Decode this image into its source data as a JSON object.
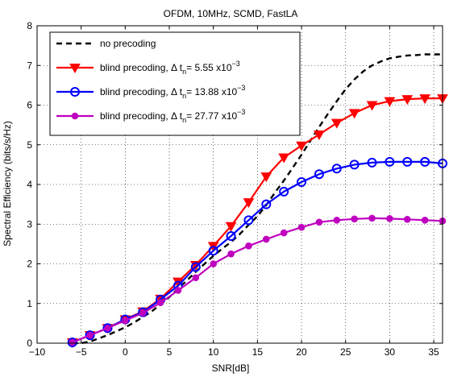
{
  "chart_data": {
    "type": "line",
    "title": "OFDM, 10MHz, SCMD, FastLA",
    "xlabel": "SNR[dB]",
    "ylabel": "Spectral Efficiency (bits/s/Hz)",
    "xlim": [
      -10,
      36
    ],
    "ylim": [
      0,
      8
    ],
    "xticks": [
      -10,
      -5,
      0,
      5,
      10,
      15,
      20,
      25,
      30,
      35
    ],
    "yticks": [
      0,
      1,
      2,
      3,
      4,
      5,
      6,
      7,
      8
    ],
    "grid": true,
    "legend_position": "top-left",
    "series": [
      {
        "name": "no precoding",
        "legend_prefix": "no precoding",
        "legend_sup": "",
        "color": "#000000",
        "style": "dashed",
        "marker": "none",
        "x": [
          -6,
          -5,
          -4,
          -3,
          -2,
          -1,
          0,
          1,
          2,
          3,
          4,
          5,
          6,
          7,
          8,
          9,
          10,
          11,
          12,
          13,
          14,
          15,
          16,
          17,
          18,
          19,
          20,
          21,
          22,
          23,
          24,
          25,
          26,
          27,
          28,
          29,
          30,
          31,
          32,
          33,
          34,
          35,
          36
        ],
        "y": [
          0.0,
          0.0,
          0.04,
          0.12,
          0.2,
          0.3,
          0.4,
          0.52,
          0.66,
          0.8,
          0.98,
          1.16,
          1.38,
          1.58,
          1.8,
          2.0,
          2.2,
          2.38,
          2.55,
          2.75,
          2.98,
          3.2,
          3.48,
          3.8,
          4.1,
          4.42,
          4.75,
          5.1,
          5.45,
          5.78,
          6.1,
          6.4,
          6.65,
          6.85,
          7.0,
          7.1,
          7.18,
          7.22,
          7.25,
          7.26,
          7.28,
          7.28,
          7.28
        ]
      },
      {
        "name": "blind precoding, Δ t_n= 5.55 x10^-3",
        "legend_prefix": "blind precoding, Δ t",
        "legend_sub": "n",
        "legend_suffix": "=  5.55 x10",
        "legend_sup": "−3",
        "color": "#ff0000",
        "style": "solid",
        "marker": "triangle-down",
        "x": [
          -6,
          -4,
          -2,
          0,
          2,
          4,
          6,
          8,
          10,
          12,
          14,
          16,
          18,
          20,
          22,
          24,
          26,
          28,
          30,
          32,
          34,
          36
        ],
        "y": [
          0.02,
          0.2,
          0.38,
          0.6,
          0.8,
          1.12,
          1.55,
          1.97,
          2.45,
          2.95,
          3.55,
          4.2,
          4.68,
          4.98,
          5.26,
          5.55,
          5.8,
          6.0,
          6.1,
          6.15,
          6.17,
          6.17
        ]
      },
      {
        "name": "blind precoding, Δ t_n= 13.88 x10^-3",
        "legend_prefix": "blind precoding, Δ t",
        "legend_sub": "n",
        "legend_suffix": "= 13.88 x10",
        "legend_sup": "−3",
        "color": "#0000ff",
        "style": "solid",
        "marker": "circle",
        "x": [
          -6,
          -4,
          -2,
          0,
          2,
          4,
          6,
          8,
          10,
          12,
          14,
          16,
          18,
          20,
          22,
          24,
          26,
          28,
          30,
          32,
          34,
          36
        ],
        "y": [
          0.02,
          0.2,
          0.38,
          0.6,
          0.78,
          1.1,
          1.45,
          1.92,
          2.33,
          2.7,
          3.1,
          3.5,
          3.82,
          4.06,
          4.26,
          4.4,
          4.5,
          4.55,
          4.57,
          4.57,
          4.57,
          4.53
        ]
      },
      {
        "name": "blind precoding, Δ t_n= 27.77 x10^-3",
        "legend_prefix": "blind precoding, Δ t",
        "legend_sub": "n",
        "legend_suffix": "= 27.77 x10",
        "legend_sup": "−3",
        "color": "#bf00bf",
        "style": "solid",
        "marker": "dot",
        "x": [
          -6,
          -4,
          -2,
          0,
          2,
          4,
          6,
          8,
          10,
          12,
          14,
          16,
          18,
          20,
          22,
          24,
          26,
          28,
          30,
          32,
          34,
          36
        ],
        "y": [
          0.02,
          0.2,
          0.38,
          0.57,
          0.76,
          1.02,
          1.33,
          1.65,
          2.0,
          2.25,
          2.45,
          2.62,
          2.78,
          2.92,
          3.05,
          3.1,
          3.13,
          3.15,
          3.14,
          3.12,
          3.1,
          3.08
        ]
      }
    ]
  }
}
